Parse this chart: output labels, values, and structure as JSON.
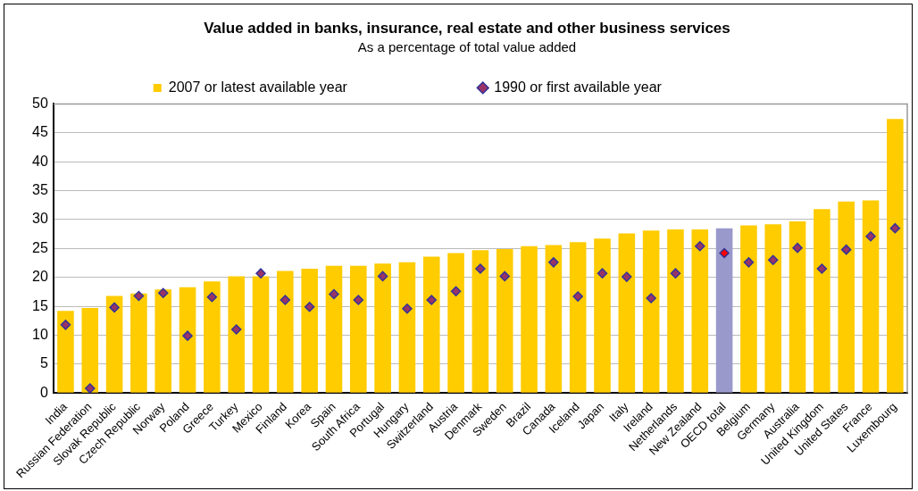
{
  "chart_data": {
    "type": "bar",
    "title": "Value added in banks, insurance, real estate and other business services",
    "subtitle": "As a percentage of total value added",
    "categories": [
      "India",
      "Russian Federation",
      "Slovak Republic",
      "Czech Republic",
      "Norway",
      "Poland",
      "Greece",
      "Turkey",
      "Mexico",
      "Finland",
      "Korea",
      "Spain",
      "South Africa",
      "Portugal",
      "Hungary",
      "Switzerland",
      "Austria",
      "Denmark",
      "Sweden",
      "Brazil",
      "Canada",
      "Iceland",
      "Japan",
      "Italy",
      "Ireland",
      "Netherlands",
      "New Zealand",
      "OECD total",
      "Belgium",
      "Germany",
      "Australia",
      "United Kingdom",
      "United States",
      "France",
      "Luxembourg"
    ],
    "series": [
      {
        "name": "2007 or latest available year",
        "color": "#ffcc00",
        "colors": [
          "#ffcc00",
          "#ffcc00",
          "#ffcc00",
          "#ffcc00",
          "#ffcc00",
          "#ffcc00",
          "#ffcc00",
          "#ffcc00",
          "#ffcc00",
          "#ffcc00",
          "#ffcc00",
          "#ffcc00",
          "#ffcc00",
          "#ffcc00",
          "#ffcc00",
          "#ffcc00",
          "#ffcc00",
          "#ffcc00",
          "#ffcc00",
          "#ffcc00",
          "#ffcc00",
          "#ffcc00",
          "#ffcc00",
          "#ffcc00",
          "#ffcc00",
          "#ffcc00",
          "#ffcc00",
          "#9999cc",
          "#ffcc00",
          "#ffcc00",
          "#ffcc00",
          "#ffcc00",
          "#ffcc00",
          "#ffcc00",
          "#ffcc00"
        ],
        "values": [
          14.2,
          14.7,
          16.8,
          17.2,
          17.9,
          18.3,
          19.3,
          20.2,
          20.2,
          21.1,
          21.5,
          22.0,
          22.0,
          22.4,
          22.6,
          23.6,
          24.2,
          24.7,
          24.9,
          25.4,
          25.6,
          26.1,
          26.7,
          27.6,
          28.1,
          28.3,
          28.3,
          28.5,
          29.0,
          29.2,
          29.7,
          31.8,
          33.1,
          33.3,
          47.4
        ]
      },
      {
        "name": "1990 or first available year",
        "type": "scatter",
        "marker": "diamond",
        "color": "#993366",
        "colors": [
          "#993366",
          "#993366",
          "#993366",
          "#993366",
          "#993366",
          "#993366",
          "#993366",
          "#993366",
          "#993366",
          "#993366",
          "#993366",
          "#993366",
          "#993366",
          "#993366",
          "#993366",
          "#993366",
          "#993366",
          "#993366",
          "#993366",
          "#993366",
          "#993366",
          "#993366",
          "#993366",
          "#993366",
          "#993366",
          "#993366",
          "#993366",
          "#ff0000",
          "#993366",
          "#993366",
          "#993366",
          "#993366",
          "#993366",
          "#993366",
          "#993366"
        ],
        "x": [
          "India",
          "Russian Federation",
          "Slovak Republic",
          "Czech Republic",
          "Norway",
          "Poland",
          "Greece",
          "Turkey",
          "Mexico",
          "Finland",
          "Korea",
          "Spain",
          "South Africa",
          "Portugal",
          "Hungary",
          "Switzerland",
          "Austria",
          "Denmark",
          "Sweden",
          "Brazil",
          "Canada",
          "Iceland",
          "Japan",
          "Italy",
          "Ireland",
          "Netherlands",
          "New Zealand",
          "OECD total",
          "Belgium",
          "Germany",
          "Australia",
          "United Kingdom",
          "United States",
          "France",
          "Luxembourg"
        ],
        "values": [
          11.8,
          0.8,
          14.8,
          16.8,
          17.3,
          9.9,
          16.6,
          11.0,
          20.7,
          16.1,
          14.9,
          17.1,
          16.1,
          20.2,
          14.6,
          16.1,
          17.6,
          21.5,
          20.2,
          null,
          22.6,
          16.7,
          20.7,
          20.1,
          16.4,
          20.7,
          25.4,
          24.2,
          22.6,
          23.0,
          25.1,
          21.5,
          24.8,
          27.1,
          28.5
        ]
      }
    ],
    "ylim": [
      0,
      50
    ],
    "yticks": [
      0,
      5,
      10,
      15,
      20,
      25,
      30,
      35,
      40,
      45,
      50
    ],
    "grid": "y",
    "legend": "top"
  }
}
